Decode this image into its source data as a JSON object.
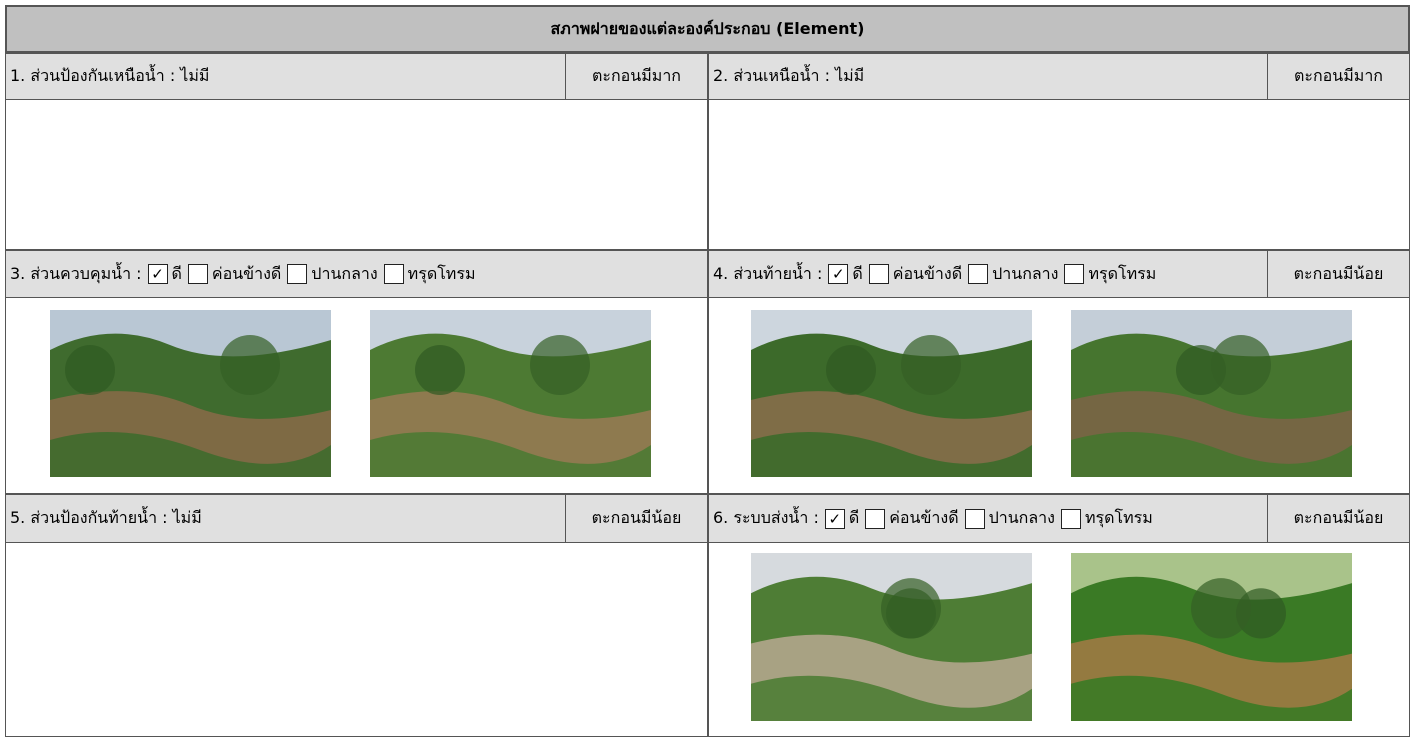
{
  "header": {
    "title": "สภาพฝายของแต่ละองค์ประกอบ (Element)"
  },
  "elements": [
    {
      "label": "1. ส่วนป้องกันเหนือน้ำ : ไม่มี",
      "status": "ตะกอนมีมาก"
    },
    {
      "label": "2. ส่วนเหนือน้ำ : ไม่มี",
      "status": "ตะกอนมีมาก"
    },
    {
      "label": "3. ส่วนควบคุมน้ำ :",
      "options": [
        {
          "text": "ดี",
          "checked": true
        },
        {
          "text": "ค่อนข้างดี",
          "checked": false
        },
        {
          "text": "ปานกลาง",
          "checked": false
        },
        {
          "text": "ทรุดโทรม",
          "checked": false
        }
      ]
    },
    {
      "label": "4. ส่วนท้ายน้ำ :",
      "options": [
        {
          "text": "ดี",
          "checked": true
        },
        {
          "text": "ค่อนข้างดี",
          "checked": false
        },
        {
          "text": "ปานกลาง",
          "checked": false
        },
        {
          "text": "ทรุดโทรม",
          "checked": false
        }
      ],
      "status": "ตะกอนมีน้อย"
    },
    {
      "label": "5. ส่วนป้องกันท้ายน้ำ : ไม่มี",
      "status": "ตะกอนมีน้อย"
    },
    {
      "label": "6. ระบบส่งน้ำ :",
      "options": [
        {
          "text": "ดี",
          "checked": true
        },
        {
          "text": "ค่อนข้างดี",
          "checked": false
        },
        {
          "text": "ปานกลาง",
          "checked": false
        },
        {
          "text": "ทรุดโทรม",
          "checked": false
        }
      ],
      "status": "ตะกอนมีน้อย"
    }
  ]
}
